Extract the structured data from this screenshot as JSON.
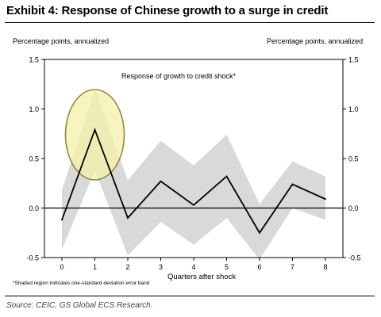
{
  "title": "Exhibit 4: Response of Chinese growth to a surge in credit",
  "unit_left": "Percentage points, annualized",
  "unit_right": "Percentage points, annualized",
  "footnote": "*Shaded region indicates one-standard-deviation error band",
  "source": "Source: CEIC, GS Global ECS Research.",
  "colors": {
    "band": "#d9d9d9",
    "line": "#000000",
    "highlight": "#f6f0a8",
    "highlight_stroke": "#8e8a43"
  },
  "chart_data": {
    "type": "line",
    "annotation": "Response of growth to credit shock*",
    "xlabel": "Quarters after shock",
    "ylabel": "",
    "x": [
      0,
      1,
      2,
      3,
      4,
      5,
      6,
      7,
      8
    ],
    "x_ticks": [
      "0",
      "1",
      "2",
      "3",
      "4",
      "5",
      "6",
      "7",
      "8"
    ],
    "ylim": [
      -0.5,
      1.5
    ],
    "y_ticks": [
      "-0.5",
      "0.0",
      "0.5",
      "1.0",
      "1.5"
    ],
    "series": [
      {
        "values": [
          -0.12,
          0.79,
          -0.1,
          0.27,
          0.03,
          0.32,
          -0.25,
          0.24,
          0.09
        ]
      }
    ],
    "error_band": {
      "upper": [
        0.18,
        1.2,
        0.28,
        0.68,
        0.43,
        0.74,
        0.04,
        0.47,
        0.32
      ],
      "lower": [
        -0.42,
        0.38,
        -0.48,
        -0.14,
        -0.37,
        -0.1,
        -0.52,
        0.0,
        -0.12
      ]
    },
    "grid": false
  }
}
